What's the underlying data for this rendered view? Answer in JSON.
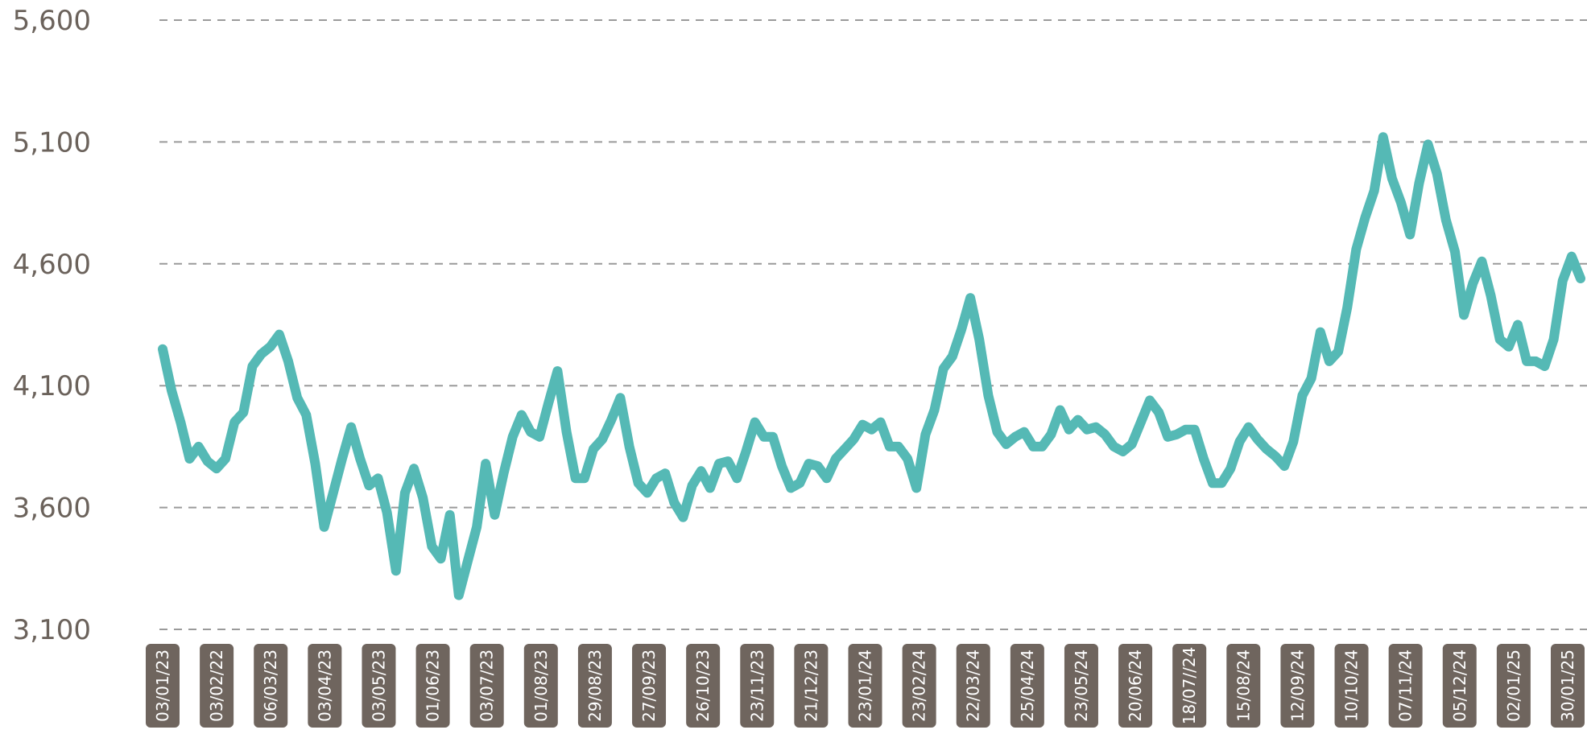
{
  "chart_data": {
    "type": "line",
    "title": "",
    "xlabel": "",
    "ylabel": "",
    "ylim": [
      3100,
      5600
    ],
    "yticks": [
      3100,
      3600,
      4100,
      4600,
      5100,
      5600
    ],
    "ytick_labels": [
      "3,100",
      "3,600",
      "4,100",
      "4,600",
      "5,100",
      "5,600"
    ],
    "grid": true,
    "legend": "none",
    "colors": {
      "series": "#55b9b5",
      "tick_pill": "#6f655e",
      "tick_text": "#ffffff",
      "y_text": "#6b625b",
      "grid": "#9a9a9a"
    },
    "x_ticks": [
      "03/01/23",
      "03/02/22",
      "06/03/23",
      "03/04/23",
      "03/05/23",
      "01/06/23",
      "03/07/23",
      "01/08/23",
      "29/08/23",
      "27/09/23",
      "26/10/23",
      "23/11/23",
      "21/12/23",
      "23/01/24",
      "23/02/24",
      "22/03/24",
      "25/04/24",
      "23/05/24",
      "20/06/24",
      "18/07//24",
      "15/08/24",
      "12/09/24",
      "10/10/24",
      "07/11/24",
      "05/12/24",
      "02/01/25",
      "30/01/25"
    ],
    "series": [
      {
        "values": [
          4250,
          4080,
          3950,
          3800,
          3850,
          3790,
          3760,
          3800,
          3950,
          3990,
          4180,
          4230,
          4260,
          4310,
          4200,
          4050,
          3980,
          3780,
          3520,
          3660,
          3800,
          3930,
          3800,
          3690,
          3720,
          3580,
          3340,
          3660,
          3760,
          3640,
          3440,
          3390,
          3570,
          3240,
          3380,
          3520,
          3780,
          3570,
          3740,
          3890,
          3980,
          3910,
          3890,
          4030,
          4160,
          3910,
          3720,
          3720,
          3840,
          3880,
          3960,
          4050,
          3850,
          3700,
          3660,
          3720,
          3740,
          3620,
          3560,
          3690,
          3750,
          3680,
          3780,
          3790,
          3720,
          3830,
          3950,
          3890,
          3890,
          3770,
          3680,
          3700,
          3780,
          3770,
          3720,
          3800,
          3840,
          3880,
          3940,
          3920,
          3950,
          3850,
          3850,
          3800,
          3680,
          3900,
          4000,
          4170,
          4220,
          4330,
          4460,
          4290,
          4060,
          3910,
          3860,
          3890,
          3910,
          3850,
          3850,
          3900,
          4000,
          3920,
          3960,
          3920,
          3930,
          3900,
          3850,
          3830,
          3860,
          3950,
          4040,
          3990,
          3890,
          3900,
          3920,
          3920,
          3800,
          3700,
          3700,
          3760,
          3870,
          3930,
          3880,
          3840,
          3810,
          3770,
          3870,
          4060,
          4130,
          4320,
          4200,
          4240,
          4420,
          4660,
          4790,
          4900,
          5120,
          4950,
          4850,
          4720,
          4930,
          5090,
          4970,
          4780,
          4650,
          4390,
          4520,
          4610,
          4470,
          4290,
          4260,
          4350,
          4200,
          4200,
          4180,
          4290,
          4530,
          4630,
          4540
        ]
      }
    ]
  }
}
